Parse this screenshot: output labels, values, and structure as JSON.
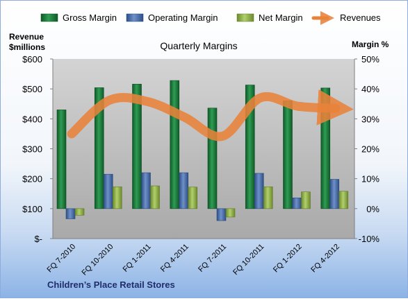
{
  "chart_data": {
    "type": "bar",
    "title": "Quarterly Margins",
    "footer": "Children’s Place Retail Stores",
    "y_left_label": [
      "Revenue",
      "$millions"
    ],
    "y_right_label": "Margin %",
    "y_left_ticks": [
      "$-",
      "$100",
      "$200",
      "$300",
      "$400",
      "$500",
      "$600"
    ],
    "y_right_ticks": [
      "-10%",
      "0%",
      "10%",
      "20%",
      "30%",
      "40%",
      "50%"
    ],
    "y_left_range": [
      0,
      600
    ],
    "y_right_range": [
      -10,
      50
    ],
    "categories": [
      "FQ 7-2010",
      "FQ 10-2010",
      "FQ 1-2011",
      "FQ 4-2011",
      "FQ 7-2011",
      "FQ 10-2011",
      "FQ 1-2012",
      "FQ 4-2012"
    ],
    "series": [
      {
        "name": "Gross Margin",
        "axis": "right",
        "values": [
          33.0,
          40.4,
          41.6,
          42.8,
          33.6,
          41.3,
          36.0,
          40.3
        ]
      },
      {
        "name": "Operating Margin",
        "axis": "right",
        "values": [
          -3.4,
          11.5,
          12.0,
          12.0,
          -4.0,
          11.8,
          3.6,
          9.8
        ]
      },
      {
        "name": "Net Margin",
        "axis": "right",
        "values": [
          -2.2,
          7.3,
          7.6,
          7.2,
          -2.8,
          7.3,
          5.6,
          5.8
        ]
      },
      {
        "name": "Revenues",
        "axis": "left",
        "type": "line",
        "values": [
          350,
          462,
          458,
          405,
          342,
          470,
          442,
          435
        ]
      }
    ],
    "grid": false,
    "legend_position": "top",
    "colors": {
      "gross": "#1f7a3d",
      "operating": "#4a6ea8",
      "net": "#93b44a",
      "revenues": "#e8823a",
      "plot_bg": "#bfbfbf",
      "footer_text": "#1f2d6b"
    }
  }
}
